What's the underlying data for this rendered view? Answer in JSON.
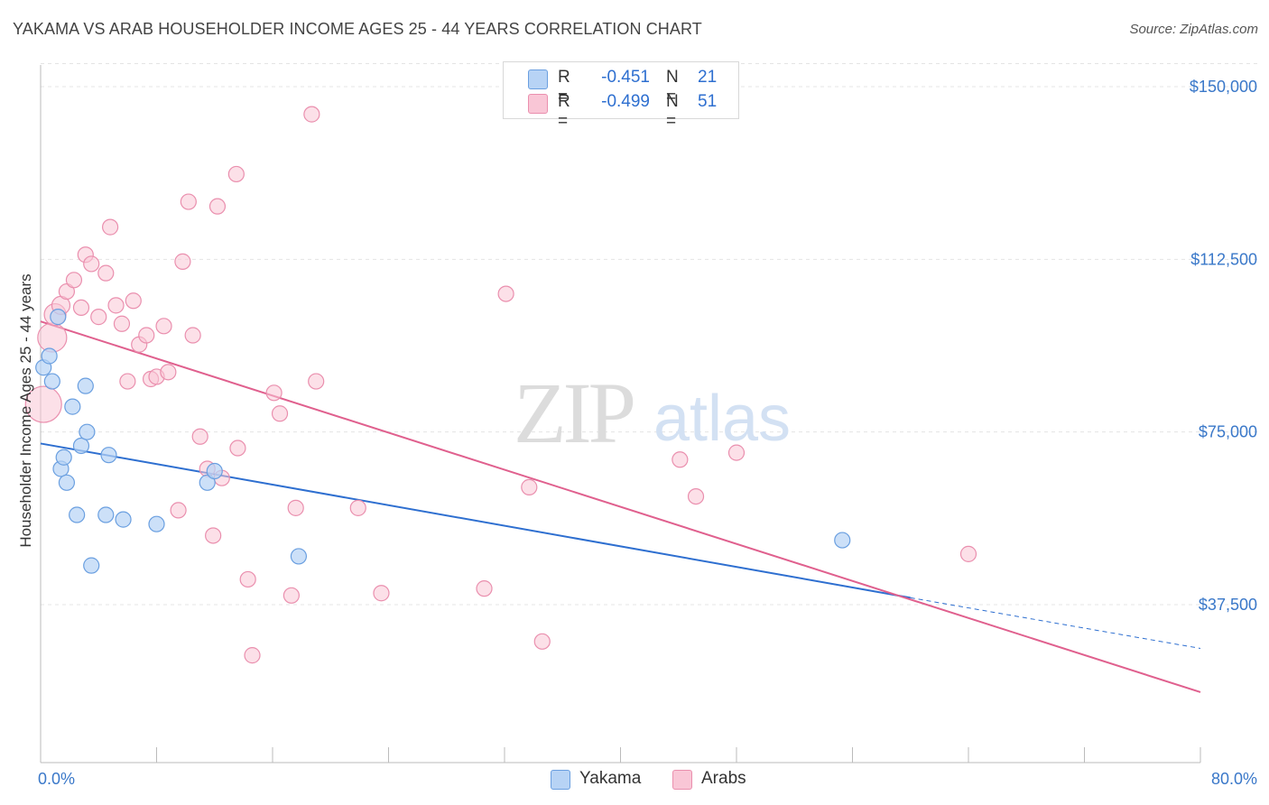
{
  "header": {
    "title": "YAKAMA VS ARAB HOUSEHOLDER INCOME AGES 25 - 44 YEARS CORRELATION CHART",
    "source": "Source: ZipAtlas.com"
  },
  "colors": {
    "yakama_fill": "#b7d3f5",
    "yakama_stroke": "#6a9fe0",
    "yakama_line": "#2e6fd0",
    "arabs_fill": "#f9c6d6",
    "arabs_stroke": "#ea8fae",
    "arabs_line": "#e0608e",
    "axis_value": "#3a78c9",
    "grid": "#e4e4e4"
  },
  "stats": {
    "yakama": {
      "r_label": "R =",
      "r_value": "-0.451",
      "n_label": "N =",
      "n_value": "21"
    },
    "arabs": {
      "r_label": "R =",
      "r_value": "-0.499",
      "n_label": "N =",
      "n_value": "51"
    }
  },
  "watermark": {
    "zip": "ZIP",
    "atlas": "atlas"
  },
  "chart_data": {
    "type": "scatter",
    "title": "YAKAMA VS ARAB HOUSEHOLDER INCOME AGES 25 - 44 YEARS CORRELATION CHART",
    "xlabel": "",
    "ylabel": "Householder Income Ages 25 - 44 years",
    "xlim": [
      0,
      80
    ],
    "ylim": [
      0,
      155000
    ],
    "x_tick_labels": [
      "0.0%",
      "80.0%"
    ],
    "y_ticks": [
      {
        "value": 150000,
        "label": "$150,000"
      },
      {
        "value": 112500,
        "label": "$112,500"
      },
      {
        "value": 75000,
        "label": "$75,000"
      },
      {
        "value": 37500,
        "label": "$37,500"
      }
    ],
    "legend": {
      "position": "bottom-center"
    },
    "series": [
      {
        "name": "Yakama",
        "points": [
          [
            0.2,
            89000
          ],
          [
            0.6,
            91500
          ],
          [
            0.8,
            86000
          ],
          [
            1.2,
            100000
          ],
          [
            1.4,
            67000
          ],
          [
            1.6,
            69500
          ],
          [
            1.8,
            64000
          ],
          [
            2.2,
            80500
          ],
          [
            2.5,
            57000
          ],
          [
            2.8,
            72000
          ],
          [
            3.1,
            85000
          ],
          [
            3.2,
            75000
          ],
          [
            3.5,
            46000
          ],
          [
            4.5,
            57000
          ],
          [
            4.7,
            70000
          ],
          [
            5.7,
            56000
          ],
          [
            8.0,
            55000
          ],
          [
            11.5,
            64000
          ],
          [
            12.0,
            66500
          ],
          [
            17.8,
            48000
          ],
          [
            55.3,
            51500
          ]
        ],
        "trend": {
          "x": [
            0,
            60
          ],
          "y": [
            72500,
            39000
          ]
        },
        "trend_dashed": {
          "x": [
            60,
            80
          ],
          "y": [
            39000,
            28000
          ]
        }
      },
      {
        "name": "Arabs",
        "points": [
          [
            0.2,
            81000
          ],
          [
            0.8,
            95500
          ],
          [
            1.0,
            100500
          ],
          [
            1.4,
            102500
          ],
          [
            1.8,
            105500
          ],
          [
            2.3,
            108000
          ],
          [
            2.8,
            102000
          ],
          [
            3.1,
            113500
          ],
          [
            3.5,
            111500
          ],
          [
            4.0,
            100000
          ],
          [
            4.5,
            109500
          ],
          [
            4.8,
            119500
          ],
          [
            5.2,
            102500
          ],
          [
            5.6,
            98500
          ],
          [
            6.0,
            86000
          ],
          [
            6.4,
            103500
          ],
          [
            6.8,
            94000
          ],
          [
            7.3,
            96000
          ],
          [
            7.6,
            86500
          ],
          [
            8.0,
            87000
          ],
          [
            8.5,
            98000
          ],
          [
            8.8,
            88000
          ],
          [
            9.5,
            58000
          ],
          [
            9.8,
            112000
          ],
          [
            10.2,
            125000
          ],
          [
            10.5,
            96000
          ],
          [
            11.0,
            74000
          ],
          [
            11.5,
            67000
          ],
          [
            11.9,
            52500
          ],
          [
            12.2,
            124000
          ],
          [
            12.5,
            65000
          ],
          [
            13.5,
            131000
          ],
          [
            13.6,
            71500
          ],
          [
            14.3,
            43000
          ],
          [
            14.6,
            26500
          ],
          [
            16.1,
            83500
          ],
          [
            16.5,
            79000
          ],
          [
            17.3,
            39500
          ],
          [
            17.6,
            58500
          ],
          [
            18.7,
            144000
          ],
          [
            19.0,
            86000
          ],
          [
            21.9,
            58500
          ],
          [
            23.5,
            40000
          ],
          [
            30.6,
            41000
          ],
          [
            32.1,
            105000
          ],
          [
            33.7,
            63000
          ],
          [
            34.6,
            29500
          ],
          [
            44.1,
            69000
          ],
          [
            45.2,
            61000
          ],
          [
            48.0,
            70500
          ],
          [
            64.0,
            48500
          ]
        ],
        "trend": {
          "x": [
            0,
            80
          ],
          "y": [
            99000,
            18500
          ]
        }
      }
    ]
  }
}
